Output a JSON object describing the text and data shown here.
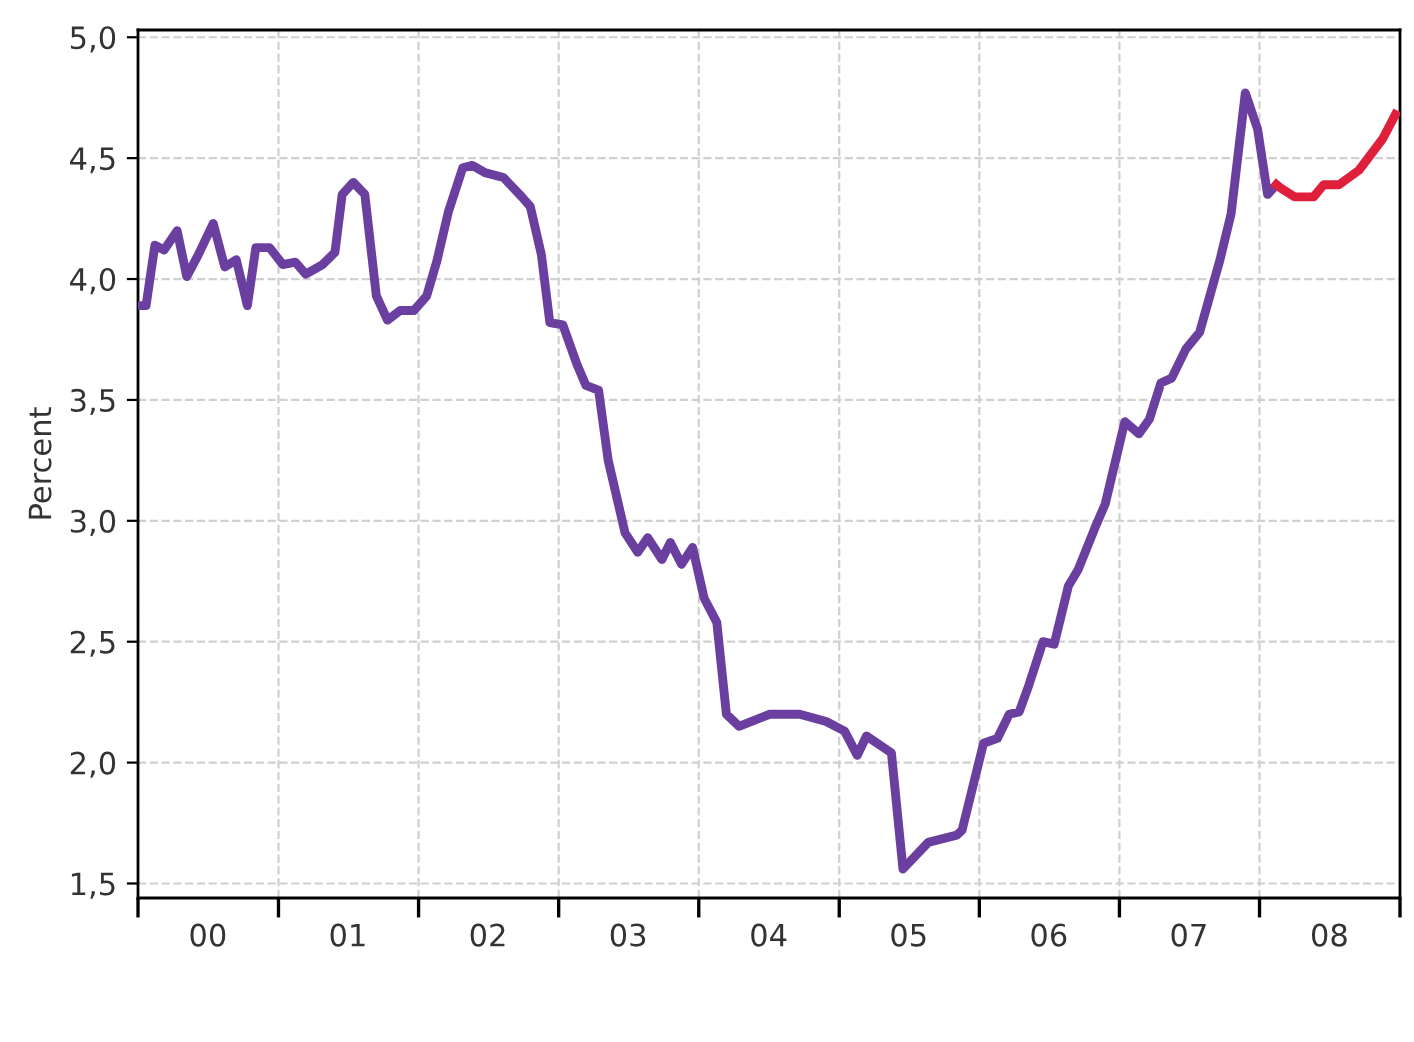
{
  "chart_data": {
    "type": "line",
    "ylabel": "Percent",
    "xlim": [
      "2000-01-01",
      "2009-01-01"
    ],
    "ylim": [
      1.44,
      5.03
    ],
    "xticks": [
      {
        "value": "2000-01-01",
        "label": null
      },
      {
        "value": "2000-07-01",
        "label": "00"
      },
      {
        "value": "2001-01-01",
        "label": null
      },
      {
        "value": "2001-07-01",
        "label": "01"
      },
      {
        "value": "2002-01-01",
        "label": null
      },
      {
        "value": "2002-07-01",
        "label": "02"
      },
      {
        "value": "2003-01-01",
        "label": null
      },
      {
        "value": "2003-07-01",
        "label": "03"
      },
      {
        "value": "2004-01-01",
        "label": null
      },
      {
        "value": "2004-07-01",
        "label": "04"
      },
      {
        "value": "2005-01-01",
        "label": null
      },
      {
        "value": "2005-07-01",
        "label": "05"
      },
      {
        "value": "2006-01-01",
        "label": null
      },
      {
        "value": "2006-07-01",
        "label": "06"
      },
      {
        "value": "2007-01-01",
        "label": null
      },
      {
        "value": "2007-07-01",
        "label": "07"
      },
      {
        "value": "2008-01-01",
        "label": null
      },
      {
        "value": "2008-07-01",
        "label": "08"
      },
      {
        "value": "2009-01-01",
        "label": null
      }
    ],
    "yticks": [
      {
        "value": 1.5,
        "label": "1,5"
      },
      {
        "value": 2.0,
        "label": "2,0"
      },
      {
        "value": 2.5,
        "label": "2,5"
      },
      {
        "value": 3.0,
        "label": "3,0"
      },
      {
        "value": 3.5,
        "label": "3,5"
      },
      {
        "value": 4.0,
        "label": "4,0"
      },
      {
        "value": 4.5,
        "label": "4,5"
      },
      {
        "value": 5.0,
        "label": "5,0"
      }
    ],
    "grid": true,
    "line_style": "solid",
    "marker": "none",
    "series": [
      {
        "color": "#6a3fa0",
        "x": [
          "2000-01-04",
          "2000-01-22",
          "2000-02-14",
          "2000-03-09",
          "2000-04-12",
          "2000-05-07",
          "2000-06-06",
          "2000-07-15",
          "2000-08-14",
          "2000-09-13",
          "2000-10-12",
          "2000-11-03",
          "2000-12-09",
          "2001-01-12",
          "2001-02-14",
          "2001-03-13",
          "2001-04-26",
          "2001-05-28",
          "2001-06-16",
          "2001-07-15",
          "2001-08-14",
          "2001-09-13",
          "2001-10-12",
          "2001-11-14",
          "2001-12-20",
          "2002-01-22",
          "2002-02-17",
          "2002-03-20",
          "2002-04-26",
          "2002-05-21",
          "2002-06-23",
          "2002-08-10",
          "2002-09-27",
          "2002-10-19",
          "2002-11-17",
          "2002-12-09",
          "2003-01-12",
          "2003-02-17",
          "2003-03-13",
          "2003-04-15",
          "2003-05-10",
          "2003-06-23",
          "2003-07-26",
          "2003-08-21",
          "2003-09-27",
          "2003-10-19",
          "2003-11-17",
          "2003-12-16",
          "2004-01-15",
          "2004-02-17",
          "2004-03-13",
          "2004-04-15",
          "2004-07-04",
          "2004-09-20",
          "2004-11-28",
          "2005-01-15",
          "2005-02-17",
          "2005-03-13",
          "2005-05-17",
          "2005-06-16",
          "2005-08-21",
          "2005-11-03",
          "2005-11-17",
          "2006-01-12",
          "2006-02-17",
          "2006-03-20",
          "2006-04-15",
          "2006-05-10",
          "2006-06-16",
          "2006-07-15",
          "2006-08-21",
          "2006-09-16",
          "2006-10-29",
          "2006-11-25",
          "2007-01-15",
          "2007-02-21",
          "2007-03-20",
          "2007-04-19",
          "2007-05-17",
          "2007-06-23",
          "2007-07-29",
          "2007-09-20",
          "2007-10-19",
          "2007-11-25",
          "2007-12-27",
          "2008-01-22",
          "2008-02-14"
        ],
        "values": [
          3.89,
          3.89,
          4.14,
          4.12,
          4.2,
          4.01,
          4.1,
          4.23,
          4.05,
          4.08,
          3.89,
          4.13,
          4.13,
          4.06,
          4.07,
          4.02,
          4.06,
          4.11,
          4.35,
          4.4,
          4.35,
          3.93,
          3.83,
          3.87,
          3.87,
          3.93,
          4.07,
          4.28,
          4.46,
          4.47,
          4.44,
          4.42,
          4.34,
          4.3,
          4.1,
          3.82,
          3.81,
          3.65,
          3.56,
          3.54,
          3.25,
          2.95,
          2.87,
          2.93,
          2.84,
          2.91,
          2.82,
          2.89,
          2.68,
          2.58,
          2.2,
          2.15,
          2.2,
          2.2,
          2.17,
          2.13,
          2.03,
          2.11,
          2.04,
          1.56,
          1.67,
          1.7,
          1.72,
          2.08,
          2.1,
          2.2,
          2.21,
          2.32,
          2.5,
          2.49,
          2.73,
          2.8,
          2.97,
          3.07,
          3.41,
          3.36,
          3.42,
          3.57,
          3.59,
          3.71,
          3.78,
          4.08,
          4.27,
          4.77,
          4.62,
          4.35,
          4.39
        ]
      },
      {
        "color": "#e0203a",
        "x": [
          "2008-02-14",
          "2008-03-02",
          "2008-04-01",
          "2008-05-21",
          "2008-06-16",
          "2008-07-26",
          "2008-09-16",
          "2008-11-17",
          "2008-12-20"
        ],
        "values": [
          4.39,
          4.37,
          4.34,
          4.34,
          4.39,
          4.39,
          4.45,
          4.58,
          4.68
        ]
      }
    ]
  }
}
